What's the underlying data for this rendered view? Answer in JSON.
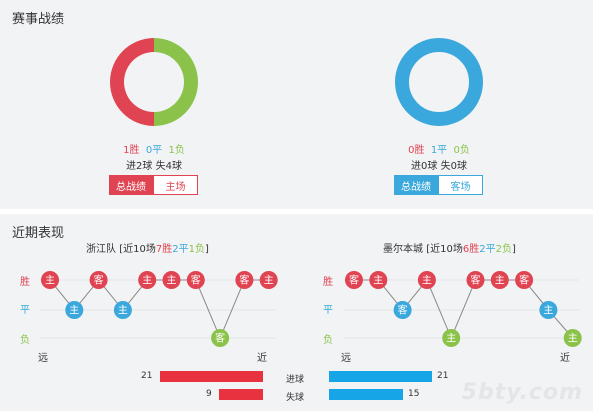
{
  "section1": {
    "title": "赛事战绩",
    "left": {
      "win": "1胜",
      "draw": "0平",
      "loss": "1负",
      "goals": "进2球 失4球",
      "tabs": [
        "总战绩",
        "主场"
      ],
      "donut": [
        {
          "label": "胜",
          "value": 1,
          "color": "#e04452"
        },
        {
          "label": "负",
          "value": 1,
          "color": "#8bc34a"
        }
      ]
    },
    "right": {
      "win": "0胜",
      "draw": "1平",
      "loss": "0负",
      "goals": "进0球 失0球",
      "tabs": [
        "总战绩",
        "客场"
      ],
      "donut": [
        {
          "label": "平",
          "value": 1,
          "color": "#3aa8dc"
        }
      ]
    }
  },
  "section2": {
    "title": "近期表现",
    "left_team": {
      "name": "浙江队",
      "summary_pre": "[近10场",
      "win": "7胜",
      "draw": "2平",
      "loss": "1负",
      "summary_post": "]",
      "results": [
        "胜",
        "平",
        "胜",
        "平",
        "胜",
        "胜",
        "胜",
        "负",
        "胜",
        "胜"
      ],
      "venues": [
        "主",
        "主",
        "客",
        "主",
        "主",
        "主",
        "客",
        "客",
        "客",
        "主"
      ]
    },
    "right_team": {
      "name": "墨尔本城",
      "summary_pre": "[近10场",
      "win": "6胜",
      "draw": "2平",
      "loss": "2负",
      "summary_post": "]",
      "results": [
        "胜",
        "胜",
        "平",
        "胜",
        "负",
        "胜",
        "胜",
        "胜",
        "平",
        "负"
      ],
      "venues": [
        "客",
        "主",
        "客",
        "主",
        "主",
        "客",
        "主",
        "客",
        "主",
        "主"
      ]
    },
    "row_labels": [
      "胜",
      "平",
      "负"
    ],
    "axis": {
      "far": "远",
      "near": "近"
    },
    "goals_row": {
      "label": "进球",
      "left": 21,
      "right": 21
    },
    "conceded_row": {
      "label": "失球",
      "left": 9,
      "right": 15
    }
  },
  "colors": {
    "win": "#e04452",
    "draw": "#3aa8dc",
    "loss": "#8bc34a",
    "bar_left": "#e8323f",
    "bar_right": "#16a5e6"
  },
  "watermark": "5bty.com"
}
